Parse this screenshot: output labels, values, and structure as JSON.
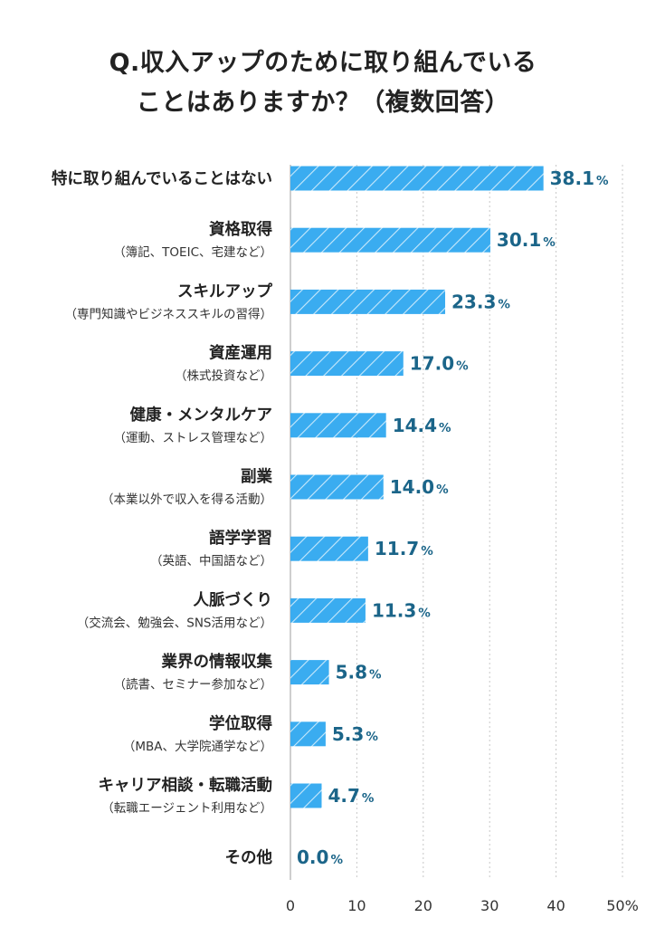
{
  "chart_data": {
    "type": "bar",
    "orientation": "horizontal",
    "title": [
      "Q.収入アップのために取り組んでいる",
      "ことはありますか？（複数回答）"
    ],
    "categories": [
      {
        "label": "特に取り組んでいることはない",
        "note": ""
      },
      {
        "label": "資格取得",
        "note": "（簿記、TOEIC、宅建など）"
      },
      {
        "label": "スキルアップ",
        "note": "（専門知識やビジネススキルの習得）"
      },
      {
        "label": "資産運用",
        "note": "（株式投資など）"
      },
      {
        "label": "健康・メンタルケア",
        "note": "（運動、ストレス管理など）"
      },
      {
        "label": "副業",
        "note": "（本業以外で収入を得る活動）"
      },
      {
        "label": "語学学習",
        "note": "（英語、中国語など）"
      },
      {
        "label": "人脈づくり",
        "note": "（交流会、勉強会、SNS活用など）"
      },
      {
        "label": "業界の情報収集",
        "note": "（読書、セミナー参加など）"
      },
      {
        "label": "学位取得",
        "note": "（MBA、大学院通学など）"
      },
      {
        "label": "キャリア相談・転職活動",
        "note": "（転職エージェント利用など）"
      },
      {
        "label": "その他",
        "note": ""
      }
    ],
    "values": [
      38.1,
      30.1,
      23.3,
      17.0,
      14.4,
      14.0,
      11.7,
      11.3,
      5.8,
      5.3,
      4.7,
      0.0
    ],
    "value_labels": [
      "38.1",
      "30.1",
      "23.3",
      "17.0",
      "14.4",
      "14.0",
      "11.7",
      "11.3",
      "5.8",
      "5.3",
      "4.7",
      "0.0"
    ],
    "unit": "%",
    "x_ticks": [
      "0",
      "10",
      "20",
      "30",
      "40",
      "50%"
    ],
    "xlim": [
      0,
      50
    ],
    "grid": "vertical-dotted",
    "colors": {
      "bar": "#3aacf0",
      "hatch": "#c9e9fb",
      "value_text": "#1b6589",
      "grid": "#c8c8c8"
    }
  }
}
